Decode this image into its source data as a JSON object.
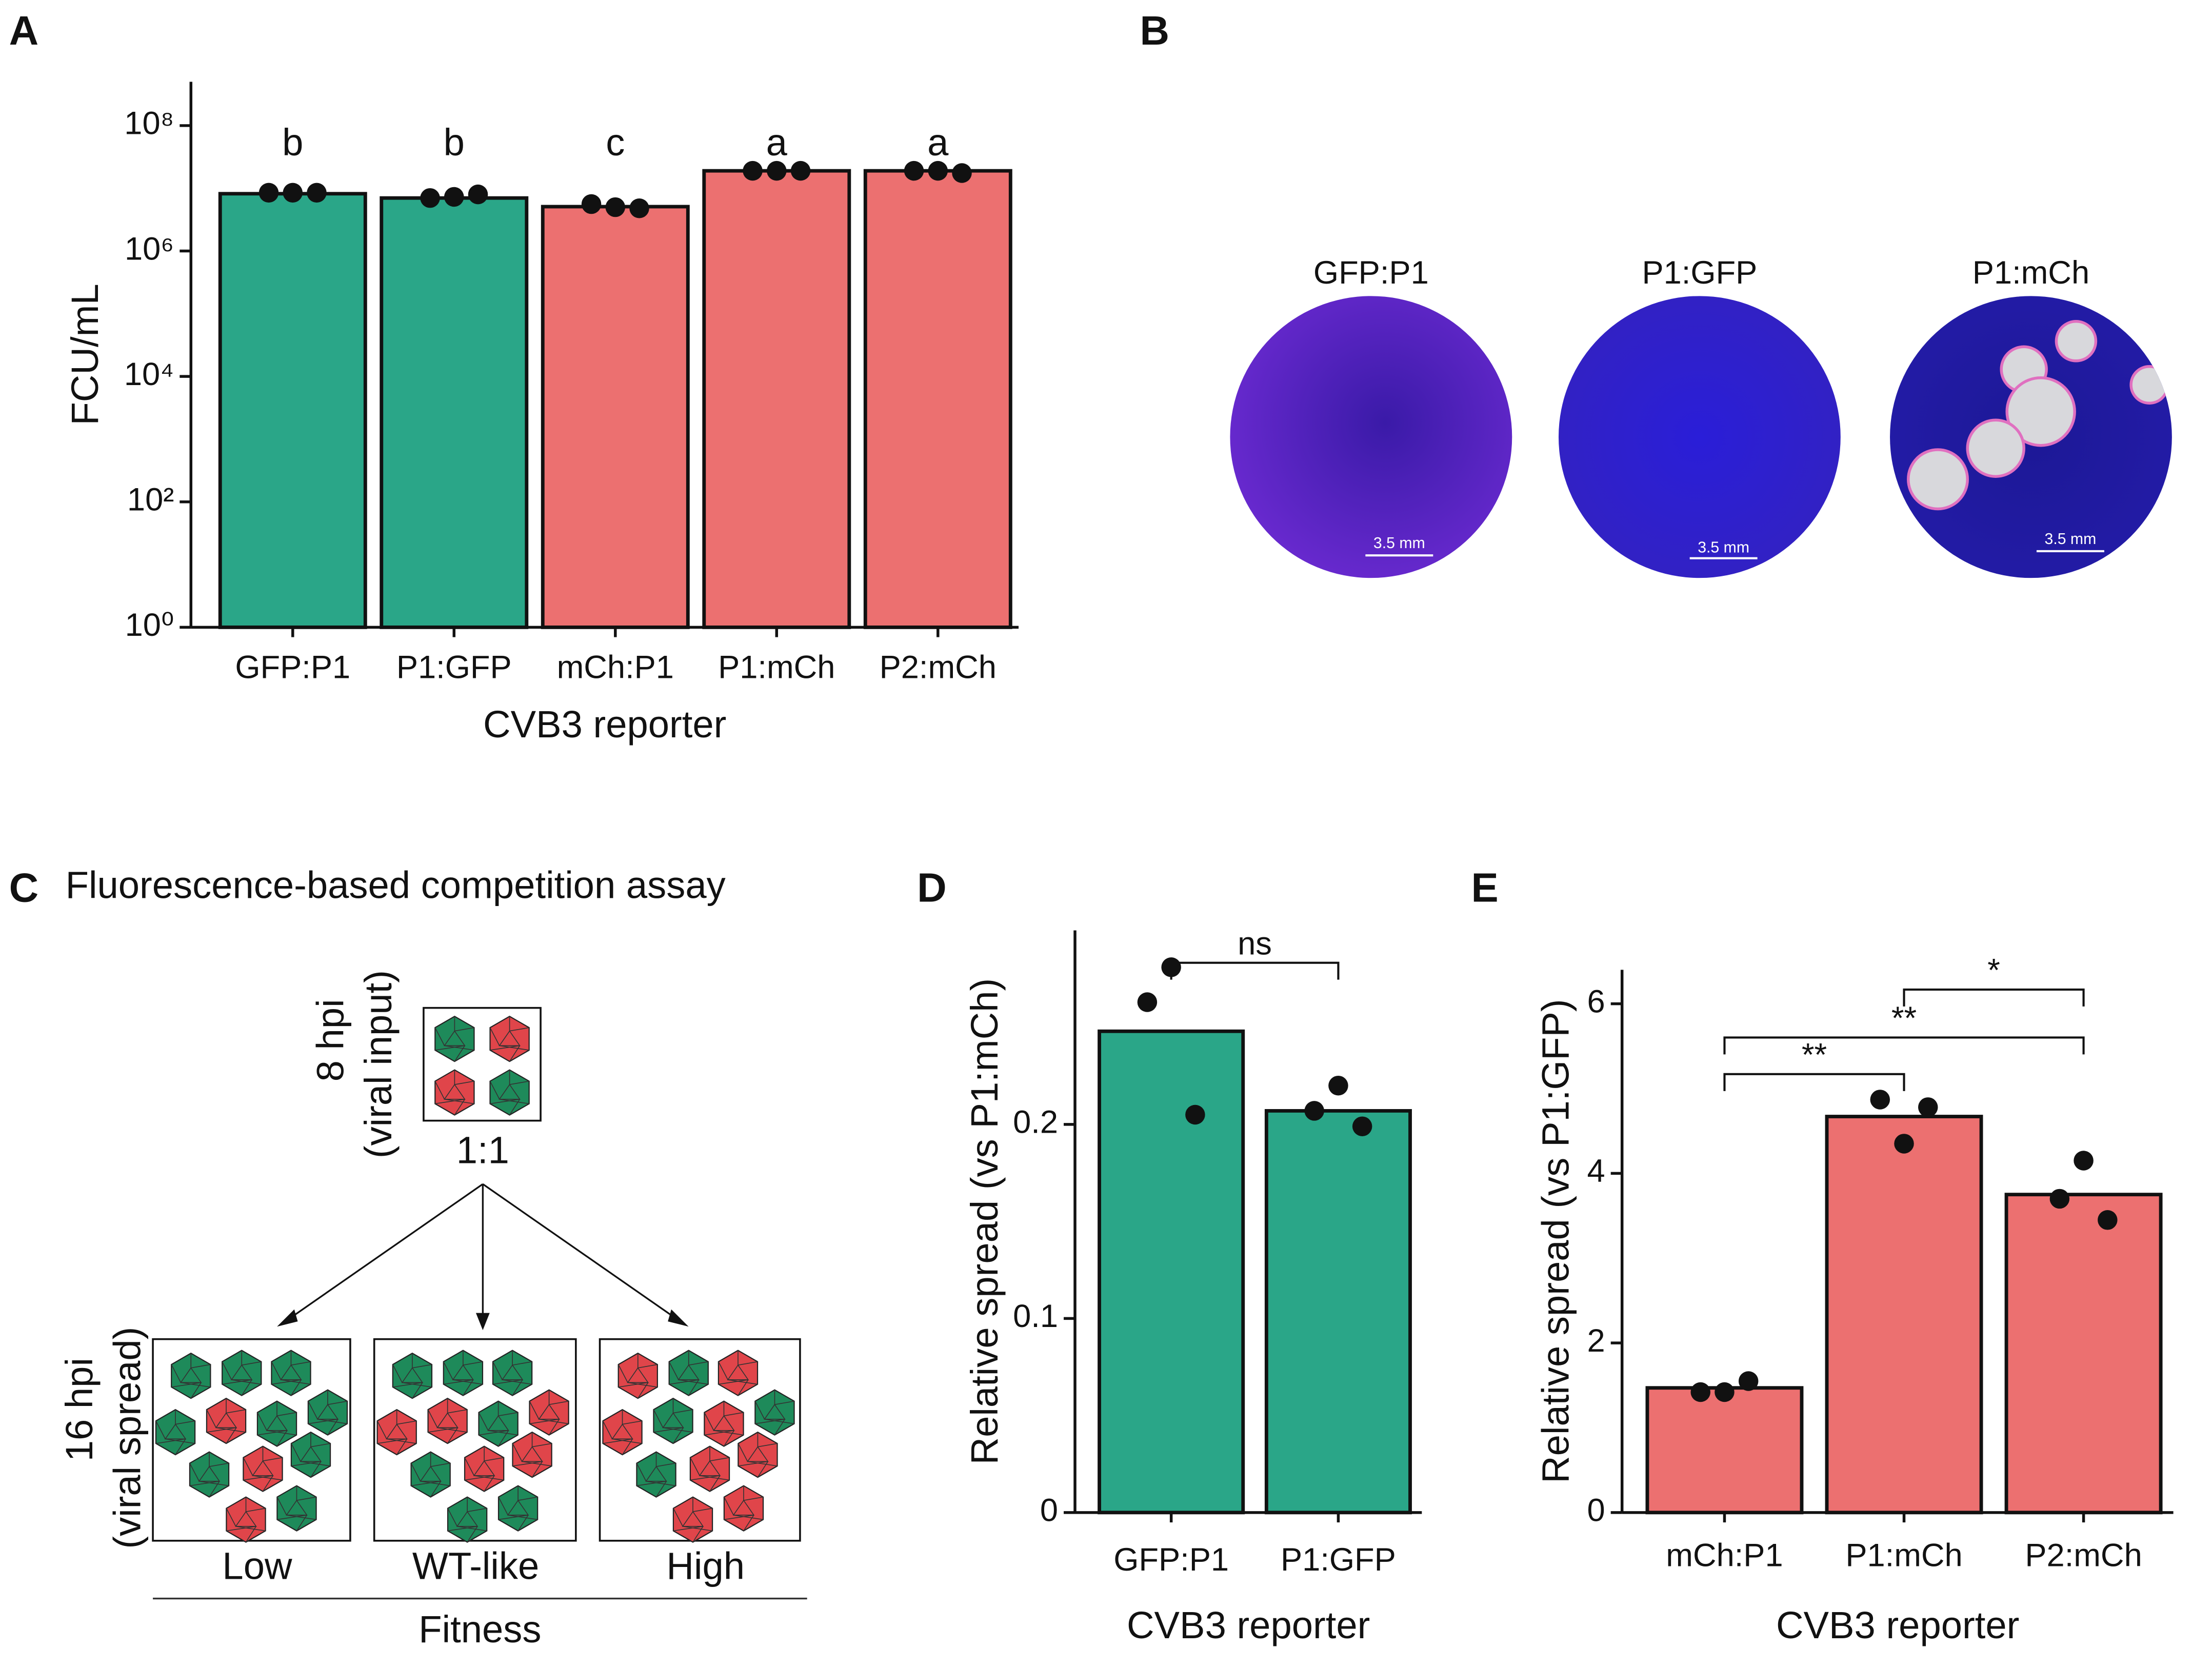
{
  "panel_labels": [
    "A",
    "B",
    "C",
    "D",
    "E"
  ],
  "chart_data": [
    {
      "type": "bar",
      "log_scale": true,
      "categories": [
        "GFP:P1",
        "P1:GFP",
        "mCh:P1",
        "P1:mCh",
        "P2:mCh"
      ],
      "values": [
        8200000,
        7000000,
        5100000,
        19000000,
        19000000
      ],
      "points": [
        [
          8500000,
          8500000,
          8500000
        ],
        [
          7000000,
          7300000,
          8000000
        ],
        [
          5600000,
          5000000,
          4800000
        ],
        [
          19000000,
          19000000,
          19000000
        ],
        [
          19000000,
          19000000,
          17500000
        ]
      ],
      "annotations": [
        "b",
        "b",
        "c",
        "a",
        "a"
      ],
      "colors": [
        "#2aa688",
        "#2aa688",
        "#ec7070",
        "#ec7070",
        "#ec7070"
      ],
      "xlabel": "CVB3 reporter",
      "ylabel": "FCU/mL",
      "ylim": [
        1,
        500000000
      ],
      "yticks": [
        {
          "value": 1,
          "label": "10⁰"
        },
        {
          "value": 100,
          "label": "10²"
        },
        {
          "value": 10000,
          "label": "10⁴"
        },
        {
          "value": 1000000,
          "label": "10⁶"
        },
        {
          "value": 100000000,
          "label": "10⁸"
        }
      ]
    },
    {
      "type": "bar",
      "categories": [
        "GFP:P1",
        "P1:GFP"
      ],
      "values": [
        0.248,
        0.207
      ],
      "points": [
        [
          0.263,
          0.281,
          0.205
        ],
        [
          0.207,
          0.22,
          0.199
        ]
      ],
      "colors": [
        "#2aa688",
        "#2aa688"
      ],
      "comparisons": [
        {
          "pair": [
            0,
            1
          ],
          "label": "ns"
        }
      ],
      "xlabel": "CVB3 reporter",
      "ylabel": "Relative spread (vs P1:mCh)",
      "ylim": [
        0,
        0.3
      ],
      "yticks": [
        0,
        0.1,
        0.2
      ]
    },
    {
      "type": "bar",
      "categories": [
        "mCh:P1",
        "P1:mCh",
        "P2:mCh"
      ],
      "values": [
        1.47,
        4.67,
        3.75
      ],
      "points": [
        [
          1.42,
          1.42,
          1.55
        ],
        [
          4.87,
          4.35,
          4.78
        ],
        [
          3.7,
          4.15,
          3.45
        ]
      ],
      "colors": [
        "#ec7070",
        "#ec7070",
        "#ec7070"
      ],
      "comparisons": [
        {
          "pair": [
            0,
            1
          ],
          "label": "**"
        },
        {
          "pair": [
            0,
            2
          ],
          "label": "**"
        },
        {
          "pair": [
            1,
            2
          ],
          "label": "*"
        }
      ],
      "xlabel": "CVB3 reporter",
      "ylabel": "Relative spread (vs P1:GFP)",
      "ylim": [
        0,
        6.4
      ],
      "yticks": [
        0,
        2,
        4,
        6
      ]
    }
  ],
  "panel_b": {
    "titles": [
      "GFP:P1",
      "P1:GFP",
      "P1:mCh"
    ],
    "scale_labels": [
      "3.5 mm",
      "3.5 mm",
      "3.5 mm"
    ]
  },
  "panel_c": {
    "title": "Fluorescence-based competition assay",
    "input_label": [
      "8 hpi",
      "(viral input)"
    ],
    "ratio": "1:1",
    "spread_label": [
      "16 hpi",
      "(viral spread)"
    ],
    "outcomes": [
      "Low",
      "WT-like",
      "High"
    ],
    "axis_label": "Fitness"
  }
}
